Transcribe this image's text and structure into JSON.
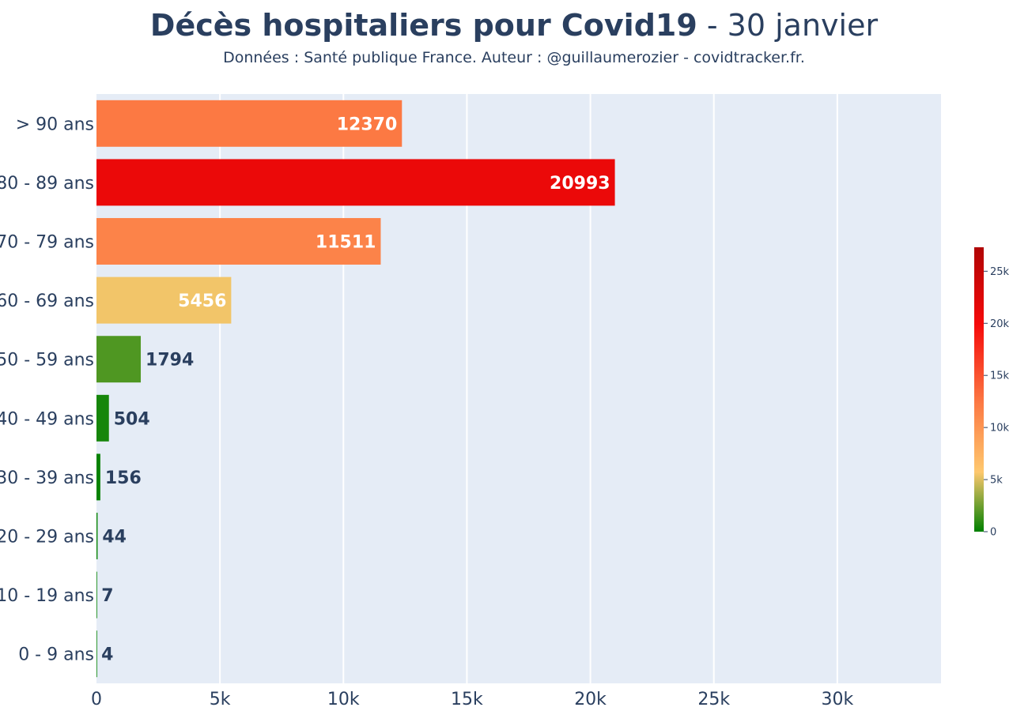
{
  "header": {
    "title_main": "Décès hospitaliers pour Covid19",
    "title_sep": " - ",
    "title_date": "30 janvier",
    "subtitle": "Données : Santé publique France. Auteur : @guillaumerozier - covidtracker.fr."
  },
  "chart_data": {
    "type": "bar",
    "orientation": "horizontal",
    "title": "Décès hospitaliers pour Covid19 - 30 janvier",
    "subtitle": "Données : Santé publique France. Auteur : @guillaumerozier - covidtracker.fr.",
    "categories": [
      "> 90 ans",
      "80 - 89 ans",
      "70 - 79 ans",
      "60 - 69 ans",
      "50 - 59 ans",
      "40 - 49 ans",
      "30 - 39 ans",
      "20 - 29 ans",
      "10 - 19 ans",
      "0 - 9 ans"
    ],
    "values": [
      12370,
      20993,
      11511,
      5456,
      1794,
      504,
      156,
      44,
      7,
      4
    ],
    "data_labels": [
      "12370",
      "20993",
      "11511",
      "5456",
      "1794",
      "504",
      "156",
      "44",
      "7",
      "4"
    ],
    "xlim": [
      0,
      34200
    ],
    "xticks": [
      0,
      5000,
      10000,
      15000,
      20000,
      25000,
      30000
    ],
    "xtick_labels": [
      "0",
      "5k",
      "10k",
      "15k",
      "20k",
      "25k",
      "30k"
    ],
    "grid": true,
    "colorbar": {
      "range": [
        0,
        27300
      ],
      "ticks": [
        0,
        5000,
        10000,
        15000,
        20000,
        25000
      ],
      "tick_labels": [
        "0",
        "5k",
        "10k",
        "15k",
        "20k",
        "25k"
      ],
      "colorscale": [
        [
          0,
          "#008000"
        ],
        [
          0.21,
          "#fec86e"
        ],
        [
          0.45,
          "#fc7a44"
        ],
        [
          0.73,
          "#f50a0a"
        ],
        [
          1,
          "#b00505"
        ]
      ],
      "placement": "right"
    },
    "colors": {
      "plot_bg": "#e5ecf6",
      "grid": "#ffffff",
      "text": "#2a3f5f",
      "label_inside": "#ffffff"
    }
  }
}
